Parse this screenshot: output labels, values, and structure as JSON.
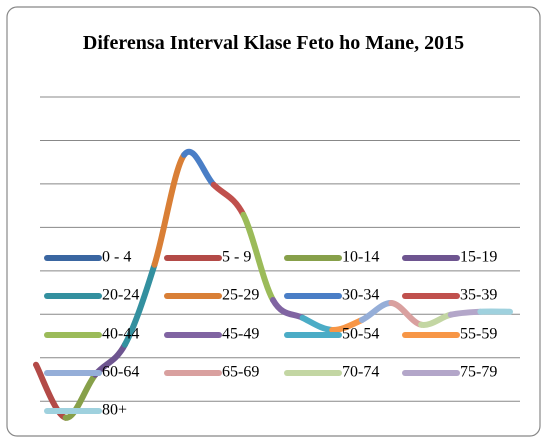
{
  "chart_data": {
    "type": "line",
    "title": "Diferensa Interval Klase Feto ho Mane, 2015",
    "categories": [
      null,
      null,
      null,
      null,
      null,
      null,
      null,
      null,
      null,
      null,
      null,
      null,
      null,
      null,
      null,
      null,
      null
    ],
    "ylim": [
      -0.8,
      7
    ],
    "grid_lines": [
      0,
      1,
      2,
      3,
      4,
      5,
      6,
      7
    ],
    "series": [
      {
        "name": "0 - 4",
        "color": "#3a66a1",
        "values": [
          null,
          null,
          null,
          null,
          null,
          null,
          null,
          null,
          null,
          null,
          null,
          null,
          null,
          null,
          null,
          null,
          null
        ]
      },
      {
        "name": "5 - 9",
        "color": "#b34a47",
        "values": [
          0.84,
          -0.38,
          null,
          null,
          null,
          null,
          null,
          null,
          null,
          null,
          null,
          null,
          null,
          null,
          null,
          null,
          null
        ]
      },
      {
        "name": "10-14",
        "color": "#87a04a",
        "values": [
          null,
          -0.38,
          0.61,
          null,
          null,
          null,
          null,
          null,
          null,
          null,
          null,
          null,
          null,
          null,
          null,
          null,
          null
        ]
      },
      {
        "name": "15-19",
        "color": "#6e5590",
        "values": [
          null,
          null,
          0.61,
          1.3,
          null,
          null,
          null,
          null,
          null,
          null,
          null,
          null,
          null,
          null,
          null,
          null,
          null
        ]
      },
      {
        "name": "20-24",
        "color": "#33909f",
        "values": [
          null,
          null,
          null,
          1.3,
          3.14,
          null,
          null,
          null,
          null,
          null,
          null,
          null,
          null,
          null,
          null,
          null,
          null
        ]
      },
      {
        "name": "25-29",
        "color": "#d97f36",
        "values": [
          null,
          null,
          null,
          null,
          3.14,
          5.67,
          null,
          null,
          null,
          null,
          null,
          null,
          null,
          null,
          null,
          null,
          null
        ]
      },
      {
        "name": "30-34",
        "color": "#4a7ec6",
        "values": [
          null,
          null,
          null,
          null,
          null,
          5.67,
          4.98,
          null,
          null,
          null,
          null,
          null,
          null,
          null,
          null,
          null,
          null
        ]
      },
      {
        "name": "35-39",
        "color": "#c0504d",
        "values": [
          null,
          null,
          null,
          null,
          null,
          null,
          4.98,
          4.29,
          null,
          null,
          null,
          null,
          null,
          null,
          null,
          null,
          null
        ]
      },
      {
        "name": "40-44",
        "color": "#9bbb59",
        "values": [
          null,
          null,
          null,
          null,
          null,
          null,
          null,
          4.29,
          2.33,
          null,
          null,
          null,
          null,
          null,
          null,
          null,
          null
        ]
      },
      {
        "name": "45-49",
        "color": "#8064a2",
        "values": [
          null,
          null,
          null,
          null,
          null,
          null,
          null,
          null,
          2.33,
          1.92,
          null,
          null,
          null,
          null,
          null,
          null,
          null
        ]
      },
      {
        "name": "50-54",
        "color": "#4bacc6",
        "values": [
          null,
          null,
          null,
          null,
          null,
          null,
          null,
          null,
          null,
          1.92,
          1.64,
          null,
          null,
          null,
          null,
          null,
          null
        ]
      },
      {
        "name": "55-59",
        "color": "#f79646",
        "values": [
          null,
          null,
          null,
          null,
          null,
          null,
          null,
          null,
          null,
          null,
          1.64,
          1.87,
          null,
          null,
          null,
          null,
          null
        ]
      },
      {
        "name": "60-64",
        "color": "#95aed8",
        "values": [
          null,
          null,
          null,
          null,
          null,
          null,
          null,
          null,
          null,
          null,
          null,
          1.87,
          2.26,
          null,
          null,
          null,
          null
        ]
      },
      {
        "name": "65-69",
        "color": "#d9a09f",
        "values": [
          null,
          null,
          null,
          null,
          null,
          null,
          null,
          null,
          null,
          null,
          null,
          null,
          2.26,
          1.76,
          null,
          null,
          null
        ]
      },
      {
        "name": "70-74",
        "color": "#c3d6a3",
        "values": [
          null,
          null,
          null,
          null,
          null,
          null,
          null,
          null,
          null,
          null,
          null,
          null,
          null,
          1.76,
          1.99,
          null,
          null
        ]
      },
      {
        "name": "75-79",
        "color": "#b3a6c9",
        "values": [
          null,
          null,
          null,
          null,
          null,
          null,
          null,
          null,
          null,
          null,
          null,
          null,
          null,
          null,
          1.99,
          2.06,
          null
        ]
      },
      {
        "name": "80+",
        "color": "#9fd1de",
        "values": [
          null,
          null,
          null,
          null,
          null,
          null,
          null,
          null,
          null,
          null,
          null,
          null,
          null,
          null,
          null,
          2.06,
          2.06
        ]
      }
    ]
  }
}
